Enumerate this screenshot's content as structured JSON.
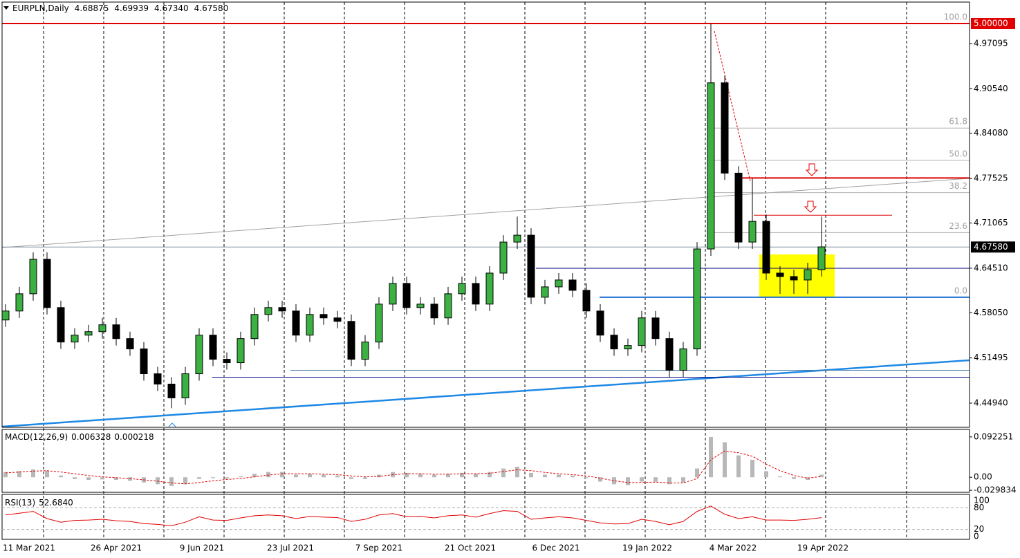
{
  "chart_data": {
    "type": "candlestick",
    "header": {
      "symbol": "EURPLN,Daily",
      "ohlc": [
        {
          "value": 4.68875,
          "label": "4.68875"
        },
        {
          "value": 4.69939,
          "label": "4.69939"
        },
        {
          "value": 4.6734,
          "label": "4.67340"
        },
        {
          "value": 4.6758,
          "label": "4.67580"
        }
      ]
    },
    "open": [
      4.57,
      4.583,
      4.608,
      4.658,
      4.588,
      4.538,
      4.548,
      4.553,
      4.563,
      4.543,
      4.528,
      4.492,
      4.477,
      4.457,
      4.492,
      4.548,
      4.513,
      4.508,
      4.543,
      4.578,
      4.588,
      4.583,
      4.548,
      4.578,
      4.573,
      4.568,
      4.513,
      4.538,
      4.593,
      4.623,
      4.588,
      4.593,
      4.573,
      4.608,
      4.623,
      4.593,
      4.638,
      4.683,
      4.693,
      4.603,
      4.618,
      4.628,
      4.613,
      4.583,
      4.548,
      4.528,
      4.533,
      4.573,
      4.543,
      4.497,
      4.528,
      4.673,
      4.914,
      4.783,
      4.683,
      4.713,
      4.638,
      4.633,
      4.628,
      4.643
    ],
    "high": [
      4.593,
      4.618,
      4.668,
      4.668,
      4.598,
      4.558,
      4.563,
      4.573,
      4.573,
      4.553,
      4.538,
      4.502,
      4.487,
      4.502,
      4.558,
      4.558,
      4.523,
      4.553,
      4.588,
      4.598,
      4.598,
      4.593,
      4.588,
      4.588,
      4.583,
      4.578,
      4.548,
      4.603,
      4.633,
      4.633,
      4.603,
      4.603,
      4.618,
      4.633,
      4.633,
      4.648,
      4.693,
      4.72,
      4.703,
      4.628,
      4.638,
      4.638,
      4.623,
      4.593,
      4.558,
      4.543,
      4.583,
      4.583,
      4.553,
      4.538,
      4.683,
      5.0,
      4.924,
      4.793,
      4.775,
      4.723,
      4.648,
      4.643,
      4.653,
      4.72
    ],
    "low": [
      4.56,
      4.573,
      4.598,
      4.578,
      4.528,
      4.528,
      4.538,
      4.543,
      4.533,
      4.518,
      4.482,
      4.467,
      4.442,
      4.447,
      4.482,
      4.503,
      4.498,
      4.498,
      4.533,
      4.568,
      4.573,
      4.538,
      4.538,
      4.563,
      4.558,
      4.503,
      4.503,
      4.528,
      4.583,
      4.578,
      4.578,
      4.563,
      4.563,
      4.598,
      4.583,
      4.583,
      4.628,
      4.673,
      4.593,
      4.593,
      4.608,
      4.603,
      4.573,
      4.538,
      4.518,
      4.518,
      4.523,
      4.533,
      4.487,
      4.487,
      4.518,
      4.663,
      4.773,
      4.673,
      4.673,
      4.628,
      4.608,
      4.608,
      4.608,
      4.633
    ],
    "close": [
      4.583,
      4.608,
      4.658,
      4.588,
      4.538,
      4.548,
      4.553,
      4.563,
      4.543,
      4.528,
      4.492,
      4.477,
      4.457,
      4.492,
      4.548,
      4.513,
      4.508,
      4.543,
      4.578,
      4.588,
      4.583,
      4.548,
      4.578,
      4.573,
      4.568,
      4.513,
      4.538,
      4.593,
      4.623,
      4.588,
      4.593,
      4.573,
      4.608,
      4.623,
      4.593,
      4.638,
      4.683,
      4.693,
      4.603,
      4.618,
      4.628,
      4.613,
      4.583,
      4.548,
      4.528,
      4.533,
      4.573,
      4.543,
      4.497,
      4.528,
      4.673,
      4.914,
      4.783,
      4.683,
      4.713,
      4.638,
      4.633,
      4.628,
      4.643,
      4.676
    ],
    "up_color": "#3cb043",
    "down_color": "#000000",
    "xlim": [
      -0.25,
      69.7
    ],
    "xticks": [
      {
        "value": 1.7,
        "label": "11 Mar 2021"
      },
      {
        "value": 8,
        "label": "26 Apr 2021"
      },
      {
        "value": 14.2,
        "label": "9 Jun 2021"
      },
      {
        "value": 20.6,
        "label": "23 Jul 2021"
      },
      {
        "value": 27,
        "label": "7 Sep 2021"
      },
      {
        "value": 33.6,
        "label": "21 Oct 2021"
      },
      {
        "value": 39.8,
        "label": "6 Dec 2021"
      },
      {
        "value": 46.4,
        "label": "19 Jan 2022"
      },
      {
        "value": 52.6,
        "label": "4 Mar 2022"
      },
      {
        "value": 59.1,
        "label": "19 Apr 2022"
      }
    ],
    "ylim": [
      4.4143,
      5.0311
    ],
    "yticks": [
      4.97095,
      {
        "value": 4.9054,
        "label": "4.90540"
      },
      {
        "value": 4.8408,
        "label": "4.84080"
      },
      4.77525,
      4.71065,
      {
        "value": 4.6451,
        "label": "4.64510"
      },
      {
        "value": 4.5805,
        "label": "4.58050"
      },
      4.51495,
      {
        "value": 4.4494,
        "label": "4.44940"
      }
    ],
    "last_price": {
      "value": 4.6758,
      "label": "4.67580"
    },
    "marked_level": {
      "value": 5,
      "label": "5.00000"
    },
    "levels": [
      {
        "value": 5,
        "from": -0.25,
        "to": 69.7,
        "color": "#e00000",
        "style": "thick"
      },
      {
        "value": 4.776,
        "from": 53,
        "to": 69.7,
        "color": "#e00000",
        "style": "thick"
      },
      {
        "value": 4.722,
        "from": 54.1,
        "to": 64.1,
        "color": "#e00000",
        "style": "thin"
      },
      {
        "value": 4.645,
        "from": 38.35,
        "to": 69.7,
        "color": "#000080",
        "style": "thin"
      },
      {
        "value": 4.603,
        "from": 42.95,
        "to": 69.7,
        "color": "#1e6fd0",
        "style": "thick"
      },
      {
        "value": 4.497,
        "from": 20.6,
        "to": 69.7,
        "color": "#4a7aa8",
        "style": "thin"
      },
      {
        "value": 4.487,
        "from": 14.95,
        "to": 69.7,
        "color": "#000080",
        "style": "thin"
      }
    ],
    "fib": {
      "low": 4.603,
      "high": 5,
      "from": 51.1,
      "color": "#b0b0b0",
      "levels": [
        {
          "value": 100,
          "label": "100.0"
        },
        {
          "value": 61.8,
          "label": "61.8"
        },
        {
          "value": 50,
          "label": "50.0"
        },
        {
          "value": 38.2,
          "label": "38.2"
        },
        {
          "value": 23.6,
          "label": "23.6"
        },
        {
          "value": 0,
          "label": "0.0"
        }
      ]
    },
    "macd": {
      "title": "MACD(12,26,9)",
      "readout": [
        0.006328,
        0.000218
      ],
      "ylim": [
        -0.0344,
        0.1094
      ],
      "yticks": [
        0.092251,
        {
          "value": 0,
          "label": "0.00"
        },
        -0.029834
      ],
      "hist_color": "#b8b8b8",
      "signal_color": "#e00000",
      "hist": [
        0.012,
        0.014,
        0.018,
        0.015,
        0.004,
        -0.004,
        -0.006,
        -0.005,
        -0.006,
        -0.008,
        -0.012,
        -0.016,
        -0.02,
        -0.016,
        -0.004,
        -0.002,
        -0.003,
        0.002,
        0.008,
        0.012,
        0.012,
        0.006,
        0.008,
        0.006,
        0.004,
        -0.004,
        -0.004,
        0.006,
        0.012,
        0.01,
        0.008,
        0.006,
        0.008,
        0.01,
        0.008,
        0.012,
        0.02,
        0.024,
        0.01,
        0.006,
        0.006,
        0.004,
        -0.002,
        -0.01,
        -0.016,
        -0.018,
        -0.01,
        -0.01,
        -0.016,
        -0.012,
        0.02,
        0.092,
        0.08,
        0.05,
        0.04,
        0.014,
        0.002,
        -0.004,
        -0.006,
        0.006
      ],
      "signal": [
        0.01,
        0.012,
        0.014,
        0.015,
        0.012,
        0.008,
        0.004,
        0.001,
        -0.001,
        -0.003,
        -0.006,
        -0.009,
        -0.013,
        -0.015,
        -0.012,
        -0.008,
        -0.005,
        -0.003,
        0.001,
        0.005,
        0.008,
        0.008,
        0.008,
        0.007,
        0.006,
        0.003,
        0.001,
        0.002,
        0.006,
        0.008,
        0.008,
        0.007,
        0.007,
        0.008,
        0.008,
        0.009,
        0.013,
        0.017,
        0.015,
        0.011,
        0.008,
        0.006,
        0.003,
        -0.002,
        -0.008,
        -0.012,
        -0.012,
        -0.011,
        -0.013,
        -0.013,
        -0.003,
        0.04,
        0.06,
        0.056,
        0.048,
        0.03,
        0.015,
        0.004,
        -0.002,
        0.002
      ]
    },
    "rsi": {
      "title": "RSI(13)",
      "readout": {
        "value": 52.684,
        "label": "52.6840"
      },
      "ylim": [
        0,
        100
      ],
      "yticks": [
        100,
        80,
        20,
        0
      ],
      "color": "#e00000",
      "values": [
        60,
        65,
        70,
        50,
        40,
        45,
        46,
        48,
        44,
        42,
        36,
        34,
        30,
        40,
        55,
        46,
        45,
        52,
        58,
        60,
        58,
        50,
        56,
        54,
        53,
        42,
        48,
        60,
        64,
        55,
        56,
        52,
        58,
        60,
        54,
        64,
        72,
        70,
        48,
        52,
        55,
        52,
        45,
        38,
        35,
        36,
        48,
        42,
        33,
        42,
        70,
        85,
        62,
        50,
        55,
        46,
        46,
        45,
        48,
        52.684
      ]
    }
  }
}
